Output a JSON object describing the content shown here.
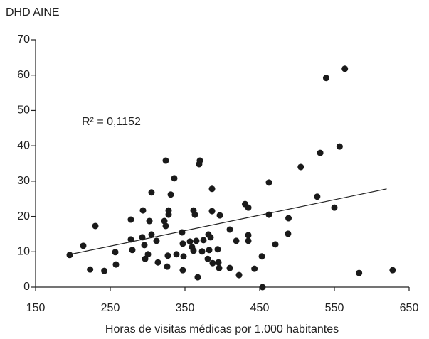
{
  "chart_data": {
    "type": "scatter",
    "y_label": "DHD AINE",
    "x_label": "Horas de visitas médicas por 1.000 habitantes",
    "annotation": "R² = 0,1152",
    "color": "#1a1a1a",
    "xlim": [
      150,
      650
    ],
    "ylim": [
      0,
      70
    ],
    "xticks": [
      150,
      250,
      350,
      450,
      550,
      650
    ],
    "yticks": [
      0,
      10,
      20,
      30,
      40,
      50,
      60,
      70
    ],
    "x": [
      195.7,
      213.8,
      223,
      230,
      242,
      256.7,
      257.6,
      277.6,
      279.5,
      277.6,
      293.8,
      292.9,
      295.7,
      296.7,
      300.5,
      302.4,
      305.2,
      305.2,
      311.9,
      313.8,
      324.3,
      322.4,
      324.3,
      327.1,
      326.2,
      328.1,
      328.1,
      331,
      335.7,
      338.6,
      346.2,
      347.1,
      347.1,
      348.1,
      356.7,
      359.5,
      361.4,
      363.3,
      361.4,
      365.2,
      367.1,
      369,
      370,
      372.9,
      374.8,
      381.4,
      382.4,
      384.3,
      380.5,
      386.2,
      386.2,
      387.1,
      393.8,
      394.8,
      395.7,
      396.7,
      410,
      410,
      418.6,
      422.4,
      430.5,
      434.8,
      434.8,
      434.8,
      443,
      452.9,
      453.8,
      462.4,
      462.4,
      471,
      488,
      488.6,
      505,
      527,
      531,
      539,
      550,
      557,
      564,
      583,
      628
    ],
    "values": [
      9.1,
      11.7,
      5,
      17.3,
      4.6,
      9.9,
      6.4,
      13.5,
      10.5,
      19.1,
      21.7,
      14.1,
      11.9,
      8,
      9.3,
      18.7,
      26.8,
      14.9,
      13.1,
      7,
      35.8,
      18.7,
      17.3,
      8.9,
      5.8,
      21.7,
      20.5,
      26.2,
      30.8,
      9.3,
      15.5,
      12.3,
      4.8,
      8.7,
      12.9,
      11.3,
      21.7,
      20.5,
      10.3,
      13.1,
      2.8,
      34.8,
      35.8,
      10.1,
      13.3,
      14.9,
      10.5,
      14.1,
      8,
      27.8,
      21.5,
      6.8,
      10.7,
      7,
      5.4,
      20.3,
      16.3,
      5.4,
      13.1,
      3.4,
      23.5,
      22.5,
      14.7,
      13.1,
      5.2,
      8.7,
      0,
      29.6,
      20.5,
      12.1,
      15.1,
      19.5,
      34,
      25.6,
      38,
      59.2,
      22.5,
      39.8,
      61.8,
      4,
      4.8
    ],
    "trendline": {
      "x": [
        195,
        620
      ],
      "values": [
        9.2,
        27.8
      ]
    }
  }
}
